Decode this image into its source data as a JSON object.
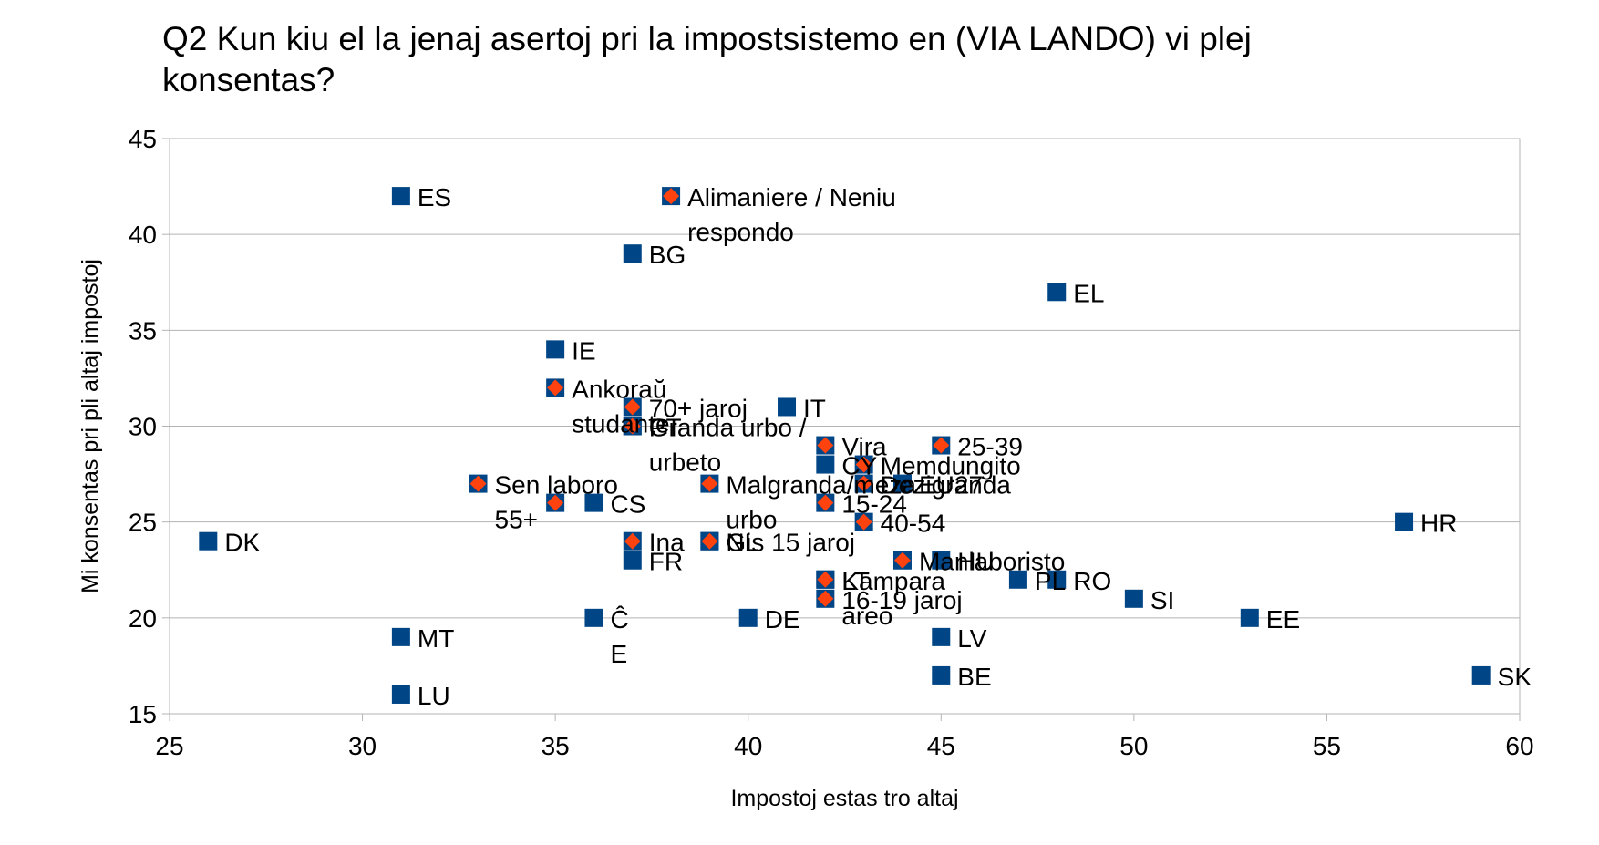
{
  "chart_data": {
    "type": "scatter",
    "title_lines": [
      "Q2 Kun kiu el la jenaj asertoj pri la impostsistemo en (VIA LANDO) vi plej",
      "konsentas?"
    ],
    "xlabel": "Impostoj estas tro altaj",
    "ylabel": "Mi konsentas pri pli altaj impostoj",
    "xlim": [
      25,
      60
    ],
    "ylim": [
      15,
      45
    ],
    "x_ticks": [
      25,
      30,
      35,
      40,
      45,
      50,
      55,
      60
    ],
    "y_ticks": [
      15,
      20,
      25,
      30,
      35,
      40,
      45
    ],
    "grid": "horizontal",
    "legend": "none",
    "series": [
      {
        "marker": "square",
        "color": "#004586",
        "points": [
          {
            "x": 31,
            "y": 42,
            "label": "ES"
          },
          {
            "x": 37,
            "y": 39,
            "label": "BG"
          },
          {
            "x": 48,
            "y": 37,
            "label": "EL"
          },
          {
            "x": 35,
            "y": 34,
            "label": "IE"
          },
          {
            "x": 37,
            "y": 30,
            "label": "PT"
          },
          {
            "x": 41,
            "y": 31,
            "label": "IT"
          },
          {
            "x": 42,
            "y": 28,
            "label": "CY"
          },
          {
            "x": 44,
            "y": 27,
            "label": "EU27"
          },
          {
            "x": 36,
            "y": 26,
            "label": "CS"
          },
          {
            "x": 26,
            "y": 24,
            "label": "DK"
          },
          {
            "x": 39,
            "y": 24,
            "label": "NL"
          },
          {
            "x": 37,
            "y": 23,
            "label": "FR"
          },
          {
            "x": 45,
            "y": 23,
            "label": "HU"
          },
          {
            "x": 47,
            "y": 22,
            "label": "PL"
          },
          {
            "x": 48,
            "y": 22,
            "label": "RO"
          },
          {
            "x": 42,
            "y": 22,
            "label": "LT"
          },
          {
            "x": 50,
            "y": 21,
            "label": "SI"
          },
          {
            "x": 57,
            "y": 25,
            "label": "HR"
          },
          {
            "x": 36,
            "y": 20,
            "label": "Ĉ\nE"
          },
          {
            "x": 40,
            "y": 20,
            "label": "DE"
          },
          {
            "x": 53,
            "y": 20,
            "label": "EE"
          },
          {
            "x": 31,
            "y": 19,
            "label": "MT"
          },
          {
            "x": 45,
            "y": 17,
            "label": "BE"
          },
          {
            "x": 59,
            "y": 17,
            "label": "SK"
          },
          {
            "x": 31,
            "y": 16,
            "label": "LU"
          },
          {
            "x": 45,
            "y": 19,
            "label": "LV"
          }
        ]
      },
      {
        "marker": "diamond",
        "color": "#ff420e",
        "points": [
          {
            "x": 38,
            "y": 42,
            "label": "Alimaniere / Neniu\nrespondo"
          },
          {
            "x": 35,
            "y": 32,
            "label": "Ankoraŭ\nstudante"
          },
          {
            "x": 37,
            "y": 31,
            "label": "70+ jaroj"
          },
          {
            "x": 37,
            "y": 30,
            "label": "Granda urbo /\nurbeto"
          },
          {
            "x": 42,
            "y": 29,
            "label": "Vira"
          },
          {
            "x": 45,
            "y": 29,
            "label": "25-39"
          },
          {
            "x": 43,
            "y": 28,
            "label": "Memdungito"
          },
          {
            "x": 33,
            "y": 27,
            "label": "Sen laboro\n55+"
          },
          {
            "x": 39,
            "y": 27,
            "label": "Malgranda/meza\nurbo"
          },
          {
            "x": 43,
            "y": 27,
            "label": "Dezigranda"
          },
          {
            "x": 35,
            "y": 26,
            "label": ""
          },
          {
            "x": 42,
            "y": 26,
            "label": "15-24"
          },
          {
            "x": 43,
            "y": 25,
            "label": "40-54"
          },
          {
            "x": 37,
            "y": 24,
            "label": "Ina"
          },
          {
            "x": 39,
            "y": 24,
            "label": "Gis 15 jaroj"
          },
          {
            "x": 44,
            "y": 23,
            "label": "Manlaboristo"
          },
          {
            "x": 42,
            "y": 22,
            "label": "Kampara\nareo"
          },
          {
            "x": 42,
            "y": 21,
            "label": "16-19 jaroj"
          }
        ]
      }
    ]
  }
}
